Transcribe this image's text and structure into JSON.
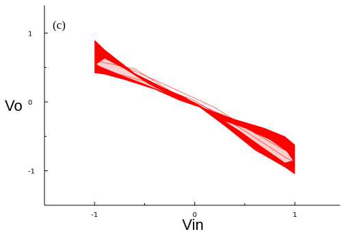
{
  "chart_data": {
    "type": "line",
    "panel_label": "(c)",
    "xlabel": "Vin",
    "ylabel": "Vo",
    "xlim": [
      -1.5,
      1.45
    ],
    "ylim": [
      -1.5,
      1.4
    ],
    "x_ticks": [
      -1,
      0,
      1
    ],
    "x_tick_labels": [
      "-1",
      "0",
      "1"
    ],
    "y_ticks": [
      1,
      0,
      -1
    ],
    "y_tick_labels": [
      "1",
      "0",
      "-1"
    ],
    "grid": false,
    "legend": "none",
    "series_color": "#ff0000",
    "band": {
      "upper": [
        [
          -1.0,
          0.9
        ],
        [
          -0.9,
          0.76
        ],
        [
          -0.6,
          0.42
        ],
        [
          -0.3,
          0.2
        ],
        [
          -0.1,
          0.07
        ],
        [
          0.1,
          -0.09
        ],
        [
          0.4,
          -0.25
        ],
        [
          0.7,
          -0.38
        ],
        [
          0.9,
          -0.5
        ],
        [
          1.0,
          -0.62
        ]
      ],
      "lower": [
        [
          1.0,
          -1.05
        ],
        [
          0.9,
          -0.95
        ],
        [
          0.6,
          -0.7
        ],
        [
          0.3,
          -0.35
        ],
        [
          0.05,
          -0.08
        ],
        [
          -0.15,
          0.02
        ],
        [
          -0.4,
          0.18
        ],
        [
          -0.7,
          0.32
        ],
        [
          -0.9,
          0.4
        ],
        [
          -1.0,
          0.42
        ]
      ]
    },
    "loop_left": {
      "outer": [
        [
          -0.98,
          0.55
        ],
        [
          -0.9,
          0.63
        ],
        [
          -0.7,
          0.48
        ],
        [
          -0.45,
          0.25
        ],
        [
          -0.3,
          0.14
        ]
      ],
      "inner": [
        [
          -0.3,
          0.14
        ],
        [
          -0.5,
          0.26
        ],
        [
          -0.75,
          0.4
        ],
        [
          -0.95,
          0.52
        ],
        [
          -0.98,
          0.55
        ]
      ]
    },
    "loop_right": {
      "outer": [
        [
          0.98,
          -0.85
        ],
        [
          0.9,
          -0.88
        ],
        [
          0.7,
          -0.68
        ],
        [
          0.45,
          -0.42
        ],
        [
          0.3,
          -0.28
        ]
      ],
      "inner": [
        [
          0.3,
          -0.28
        ],
        [
          0.5,
          -0.38
        ],
        [
          0.75,
          -0.55
        ],
        [
          0.92,
          -0.72
        ],
        [
          0.98,
          -0.85
        ]
      ]
    },
    "trace_lines": [
      [
        [
          -1.0,
          0.6
        ],
        [
          -0.6,
          0.48
        ],
        [
          -0.2,
          0.12
        ],
        [
          0.3,
          -0.2
        ],
        [
          0.8,
          -0.62
        ],
        [
          1.0,
          -0.78
        ]
      ],
      [
        [
          -1.0,
          0.5
        ],
        [
          -0.5,
          0.3
        ],
        [
          0.0,
          0.02
        ],
        [
          0.5,
          -0.42
        ],
        [
          0.9,
          -0.8
        ],
        [
          1.0,
          -0.88
        ]
      ],
      [
        [
          -1.0,
          0.7
        ],
        [
          -0.4,
          0.32
        ],
        [
          0.2,
          -0.08
        ],
        [
          0.6,
          -0.45
        ],
        [
          1.0,
          -0.7
        ]
      ]
    ]
  }
}
